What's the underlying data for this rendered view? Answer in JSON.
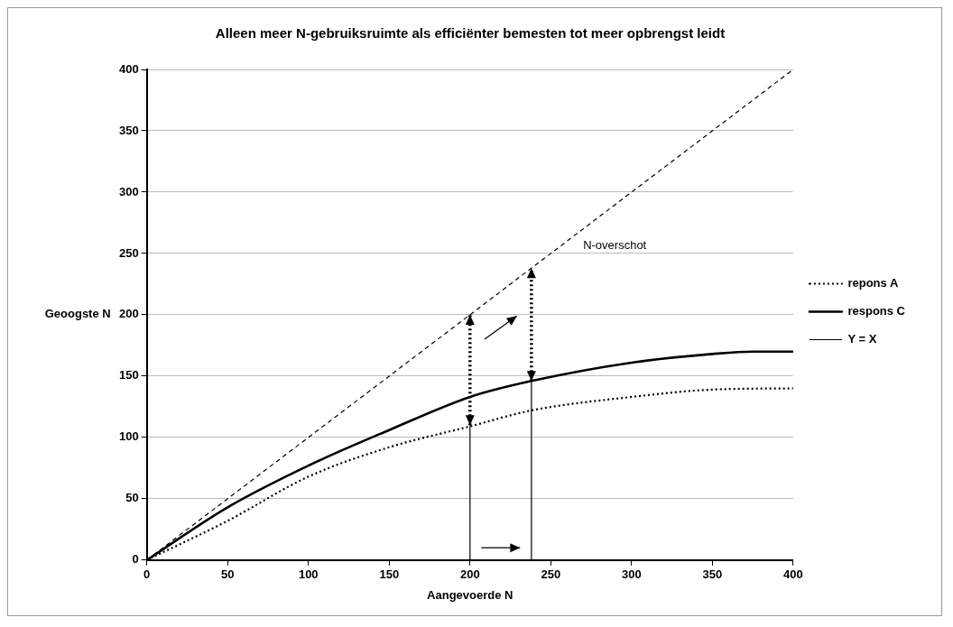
{
  "chart_data": {
    "type": "line",
    "title": "Alleen meer N-gebruiksruimte als efficiënter bemesten tot meer opbrengst leidt",
    "xlabel": "Aangevoerde N",
    "ylabel": "Geoogste N",
    "xlim": [
      0,
      400
    ],
    "xticks": [
      0,
      50,
      100,
      150,
      200,
      250,
      300,
      350,
      400
    ],
    "ylim": [
      0,
      400
    ],
    "yticks": [
      0,
      50,
      100,
      150,
      200,
      250,
      300,
      350,
      400
    ],
    "grid": "y",
    "legend": "right",
    "annotations": [
      "N-overschot"
    ],
    "series": [
      {
        "name": "repons A",
        "color": "#000000",
        "line_style": "dotted",
        "x": [
          0,
          50,
          100,
          150,
          200,
          238,
          300,
          350,
          400
        ],
        "values": [
          0,
          32,
          68,
          92,
          109,
          122,
          133,
          139,
          140
        ]
      },
      {
        "name": "respons C",
        "color": "#000000",
        "line_style": "solid",
        "x": [
          0,
          50,
          100,
          150,
          200,
          238,
          300,
          350,
          375,
          400
        ],
        "values": [
          0,
          43,
          77,
          106,
          133,
          146,
          161,
          168,
          170,
          170
        ]
      },
      {
        "name": "Y = X",
        "color": "#000000",
        "line_style": "dashed",
        "x": [
          0,
          400
        ],
        "values": [
          0,
          400
        ]
      }
    ]
  }
}
